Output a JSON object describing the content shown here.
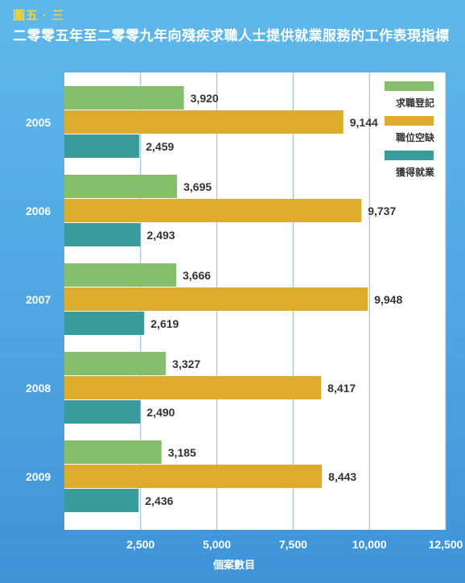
{
  "header": {
    "figure_label": "圖五 · 三",
    "title": "二零零五年至二零零九年向殘疾求職人士提供就業服務的工作表現指標"
  },
  "chart_data": {
    "type": "bar",
    "orientation": "horizontal",
    "categories": [
      "2005",
      "2006",
      "2007",
      "2008",
      "2009"
    ],
    "series": [
      {
        "name": "求職登記",
        "color": "#86bf6c",
        "values": [
          3920,
          3695,
          3666,
          3327,
          3185
        ]
      },
      {
        "name": "職位空缺",
        "color": "#ddab2e",
        "values": [
          9144,
          9737,
          9948,
          8417,
          8443
        ]
      },
      {
        "name": "獲得就業",
        "color": "#3a9b9b",
        "values": [
          2459,
          2493,
          2619,
          2490,
          2436
        ]
      }
    ],
    "value_labels": [
      [
        "3,920",
        "3,695",
        "3,666",
        "3,327",
        "3,185"
      ],
      [
        "9,144",
        "9,737",
        "9,948",
        "8,417",
        "8,443"
      ],
      [
        "2,459",
        "2,493",
        "2,619",
        "2,490",
        "2,436"
      ]
    ],
    "xlabel": "個案數目",
    "xlim": [
      0,
      12500
    ],
    "xticks": [
      2500,
      5000,
      7500,
      10000,
      12500
    ],
    "xtick_labels": [
      "2,500",
      "5,000",
      "7,500",
      "10,000",
      "12,500"
    ],
    "grid": true,
    "legend_position": "top-right"
  }
}
